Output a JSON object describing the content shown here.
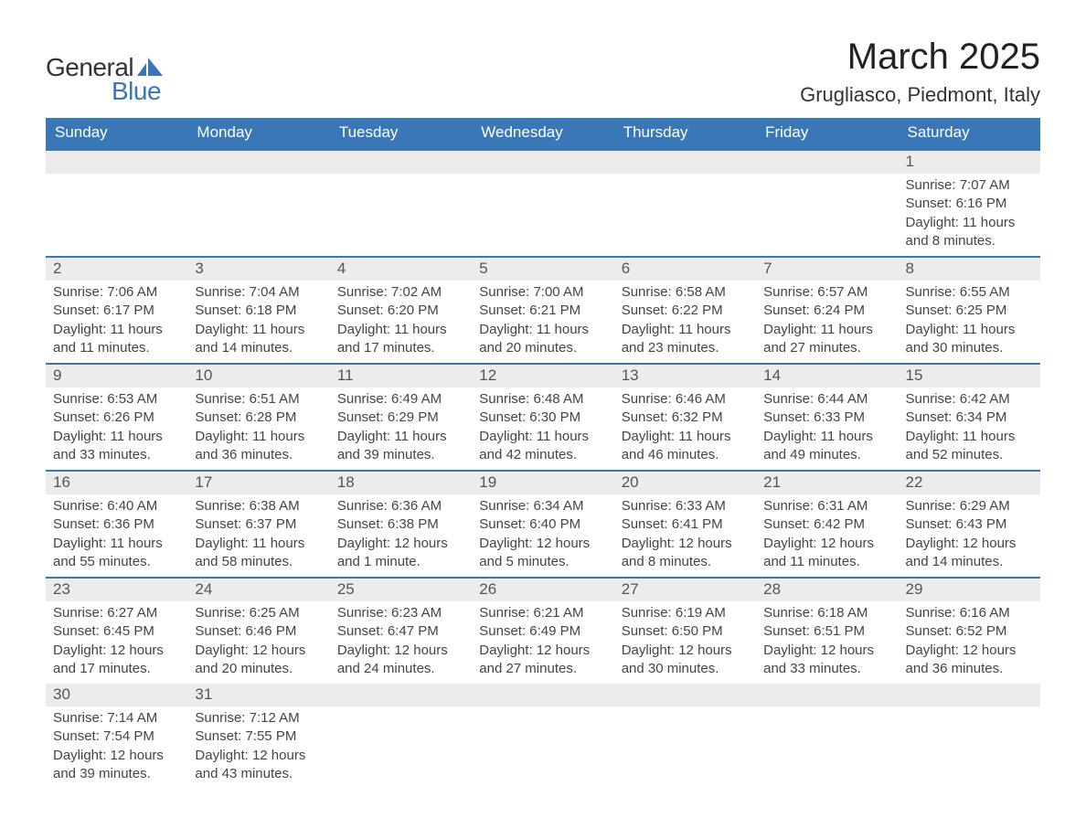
{
  "logo": {
    "text_general": "General",
    "text_blue": "Blue",
    "color_general": "#333333",
    "color_blue": "#3a77b7"
  },
  "title": "March 2025",
  "location": "Grugliasco, Piedmont, Italy",
  "header_bg": "#3a77b7",
  "header_text_color": "#ffffff",
  "daynum_bg": "#ececec",
  "row_border_color": "#3a77b7",
  "text_color": "#444444",
  "weekdays": [
    "Sunday",
    "Monday",
    "Tuesday",
    "Wednesday",
    "Thursday",
    "Friday",
    "Saturday"
  ],
  "weeks": [
    [
      null,
      null,
      null,
      null,
      null,
      null,
      {
        "n": "1",
        "sunrise": "7:07 AM",
        "sunset": "6:16 PM",
        "daylight": "11 hours and 8 minutes."
      }
    ],
    [
      {
        "n": "2",
        "sunrise": "7:06 AM",
        "sunset": "6:17 PM",
        "daylight": "11 hours and 11 minutes."
      },
      {
        "n": "3",
        "sunrise": "7:04 AM",
        "sunset": "6:18 PM",
        "daylight": "11 hours and 14 minutes."
      },
      {
        "n": "4",
        "sunrise": "7:02 AM",
        "sunset": "6:20 PM",
        "daylight": "11 hours and 17 minutes."
      },
      {
        "n": "5",
        "sunrise": "7:00 AM",
        "sunset": "6:21 PM",
        "daylight": "11 hours and 20 minutes."
      },
      {
        "n": "6",
        "sunrise": "6:58 AM",
        "sunset": "6:22 PM",
        "daylight": "11 hours and 23 minutes."
      },
      {
        "n": "7",
        "sunrise": "6:57 AM",
        "sunset": "6:24 PM",
        "daylight": "11 hours and 27 minutes."
      },
      {
        "n": "8",
        "sunrise": "6:55 AM",
        "sunset": "6:25 PM",
        "daylight": "11 hours and 30 minutes."
      }
    ],
    [
      {
        "n": "9",
        "sunrise": "6:53 AM",
        "sunset": "6:26 PM",
        "daylight": "11 hours and 33 minutes."
      },
      {
        "n": "10",
        "sunrise": "6:51 AM",
        "sunset": "6:28 PM",
        "daylight": "11 hours and 36 minutes."
      },
      {
        "n": "11",
        "sunrise": "6:49 AM",
        "sunset": "6:29 PM",
        "daylight": "11 hours and 39 minutes."
      },
      {
        "n": "12",
        "sunrise": "6:48 AM",
        "sunset": "6:30 PM",
        "daylight": "11 hours and 42 minutes."
      },
      {
        "n": "13",
        "sunrise": "6:46 AM",
        "sunset": "6:32 PM",
        "daylight": "11 hours and 46 minutes."
      },
      {
        "n": "14",
        "sunrise": "6:44 AM",
        "sunset": "6:33 PM",
        "daylight": "11 hours and 49 minutes."
      },
      {
        "n": "15",
        "sunrise": "6:42 AM",
        "sunset": "6:34 PM",
        "daylight": "11 hours and 52 minutes."
      }
    ],
    [
      {
        "n": "16",
        "sunrise": "6:40 AM",
        "sunset": "6:36 PM",
        "daylight": "11 hours and 55 minutes."
      },
      {
        "n": "17",
        "sunrise": "6:38 AM",
        "sunset": "6:37 PM",
        "daylight": "11 hours and 58 minutes."
      },
      {
        "n": "18",
        "sunrise": "6:36 AM",
        "sunset": "6:38 PM",
        "daylight": "12 hours and 1 minute."
      },
      {
        "n": "19",
        "sunrise": "6:34 AM",
        "sunset": "6:40 PM",
        "daylight": "12 hours and 5 minutes."
      },
      {
        "n": "20",
        "sunrise": "6:33 AM",
        "sunset": "6:41 PM",
        "daylight": "12 hours and 8 minutes."
      },
      {
        "n": "21",
        "sunrise": "6:31 AM",
        "sunset": "6:42 PM",
        "daylight": "12 hours and 11 minutes."
      },
      {
        "n": "22",
        "sunrise": "6:29 AM",
        "sunset": "6:43 PM",
        "daylight": "12 hours and 14 minutes."
      }
    ],
    [
      {
        "n": "23",
        "sunrise": "6:27 AM",
        "sunset": "6:45 PM",
        "daylight": "12 hours and 17 minutes."
      },
      {
        "n": "24",
        "sunrise": "6:25 AM",
        "sunset": "6:46 PM",
        "daylight": "12 hours and 20 minutes."
      },
      {
        "n": "25",
        "sunrise": "6:23 AM",
        "sunset": "6:47 PM",
        "daylight": "12 hours and 24 minutes."
      },
      {
        "n": "26",
        "sunrise": "6:21 AM",
        "sunset": "6:49 PM",
        "daylight": "12 hours and 27 minutes."
      },
      {
        "n": "27",
        "sunrise": "6:19 AM",
        "sunset": "6:50 PM",
        "daylight": "12 hours and 30 minutes."
      },
      {
        "n": "28",
        "sunrise": "6:18 AM",
        "sunset": "6:51 PM",
        "daylight": "12 hours and 33 minutes."
      },
      {
        "n": "29",
        "sunrise": "6:16 AM",
        "sunset": "6:52 PM",
        "daylight": "12 hours and 36 minutes."
      }
    ],
    [
      {
        "n": "30",
        "sunrise": "7:14 AM",
        "sunset": "7:54 PM",
        "daylight": "12 hours and 39 minutes."
      },
      {
        "n": "31",
        "sunrise": "7:12 AM",
        "sunset": "7:55 PM",
        "daylight": "12 hours and 43 minutes."
      },
      null,
      null,
      null,
      null,
      null
    ]
  ],
  "labels": {
    "sunrise": "Sunrise: ",
    "sunset": "Sunset: ",
    "daylight": "Daylight: "
  }
}
